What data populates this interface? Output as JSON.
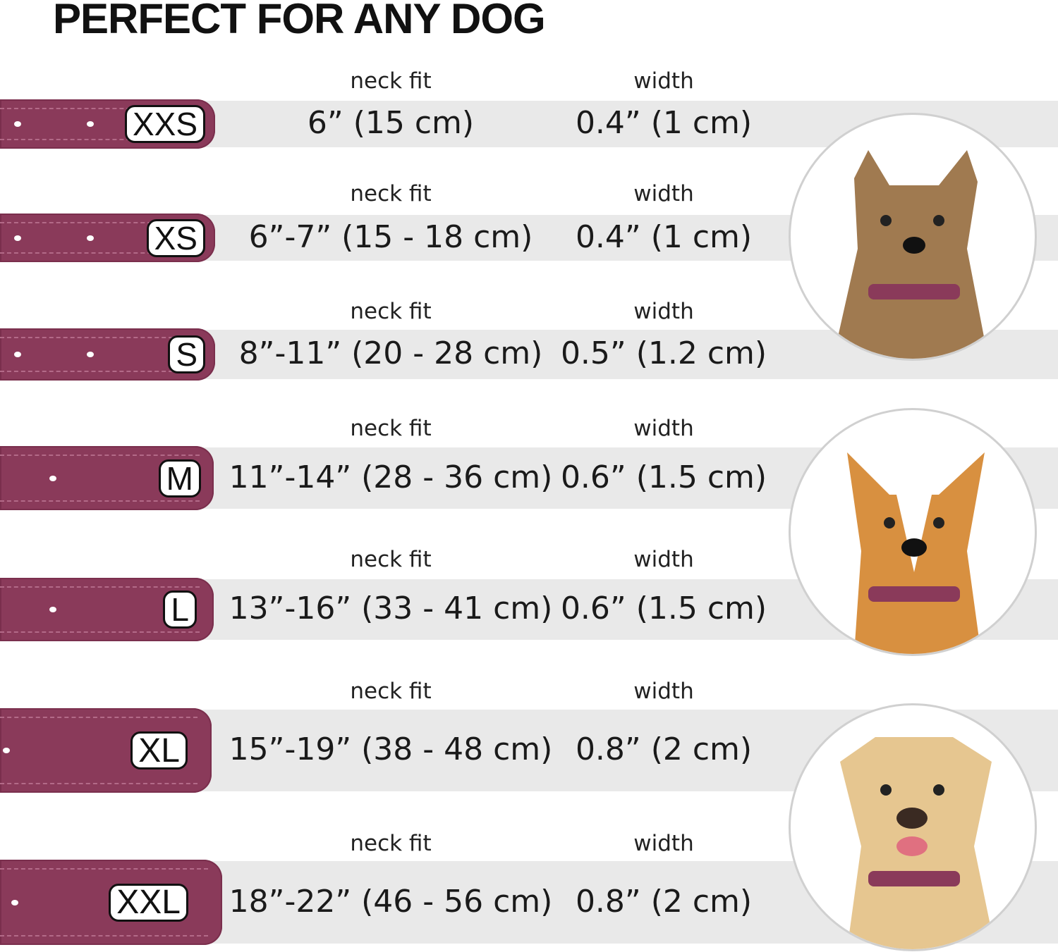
{
  "title": "PERFECT FOR ANY DOG",
  "neck_label": "neck fit",
  "width_label": "width",
  "colors": {
    "collar": "#8a3a5a",
    "band": "#e9e9e9"
  },
  "sizes": [
    {
      "size": "XXS",
      "neck_fit": "6” (15 cm)",
      "width": "0.4” (1 cm)"
    },
    {
      "size": "XS",
      "neck_fit": "6”-7” (15 - 18 cm)",
      "width": "0.4” (1 cm)"
    },
    {
      "size": "S",
      "neck_fit": "8”-11” (20 - 28 cm)",
      "width": "0.5” (1.2 cm)"
    },
    {
      "size": "M",
      "neck_fit": "11”-14” (28 - 36 cm)",
      "width": "0.6” (1.5 cm)"
    },
    {
      "size": "L",
      "neck_fit": "13”-16” (33 - 41 cm)",
      "width": "0.6” (1.5 cm)"
    },
    {
      "size": "XL",
      "neck_fit": "15”-19” (38 - 48 cm)",
      "width": "0.8” (2 cm)"
    },
    {
      "size": "XXL",
      "neck_fit": "18”-22” (46 - 56 cm)",
      "width": "0.8” (2 cm)"
    }
  ],
  "dog_images": [
    "small-terrier-photo",
    "corgi-photo",
    "labrador-photo"
  ]
}
